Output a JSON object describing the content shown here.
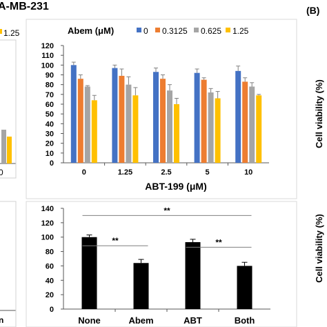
{
  "figure_text": {
    "cell_line_title": "A-MB-231",
    "panel_b_label": "(B)",
    "left_legend_fragment": "1.25",
    "left_tick_fragment": "0",
    "left_xtick_fragment": "n",
    "right_ylabel_top": "Cell viability (%)",
    "right_ylabel_bottom": "Cell viability (%)"
  },
  "chart_data": [
    {
      "type": "bar",
      "legend_title": "Abem (μM)",
      "legend_position": "top",
      "xlabel": "ABT-199 (μM)",
      "ylabel": "",
      "categories": [
        "0",
        "1.25",
        "2.5",
        "5",
        "10"
      ],
      "ylim": [
        0,
        120
      ],
      "yticks": [
        0,
        10,
        20,
        30,
        40,
        50,
        60,
        70,
        80,
        90,
        100,
        110,
        120
      ],
      "ytick_labels": [
        "0",
        "10",
        "20",
        "30",
        "40",
        "50",
        "60",
        "70",
        "80",
        "90",
        "100",
        "110",
        "120"
      ],
      "grid": false,
      "series": [
        {
          "name": "0",
          "color": "#4472C4",
          "values": [
            100,
            97,
            93,
            92,
            94
          ],
          "errors": [
            3,
            3,
            4,
            4,
            5
          ]
        },
        {
          "name": "0.3125",
          "color": "#ED7D31",
          "values": [
            86,
            89,
            86,
            85,
            83
          ],
          "errors": [
            4,
            7,
            4,
            2,
            4
          ]
        },
        {
          "name": "0.625",
          "color": "#A5A5A5",
          "values": [
            78,
            80,
            74,
            72,
            78
          ],
          "errors": [
            1,
            8,
            6,
            4,
            4
          ]
        },
        {
          "name": "1.25",
          "color": "#FFC000",
          "values": [
            64,
            69,
            60,
            66,
            69
          ],
          "errors": [
            5,
            8,
            6,
            7,
            1
          ]
        }
      ]
    },
    {
      "type": "bar",
      "xlabel": "",
      "ylabel": "",
      "categories": [
        "None",
        "Abem",
        "ABT",
        "Both"
      ],
      "ylim": [
        0,
        140
      ],
      "yticks": [
        0,
        20,
        40,
        60,
        80,
        100,
        120,
        140
      ],
      "ytick_labels": [
        "0",
        "20",
        "40",
        "60",
        "80",
        "100",
        "120",
        "140"
      ],
      "grid": false,
      "series": [
        {
          "color": "#000000",
          "values": [
            100,
            64,
            93,
            60
          ],
          "errors": [
            3,
            5,
            4,
            5
          ]
        }
      ],
      "annotations": [
        {
          "text": "**",
          "from": "None",
          "to": "Both",
          "level": 130
        },
        {
          "text": "**",
          "from": "None",
          "to": "Abem",
          "level": 88
        },
        {
          "text": "**",
          "from": "ABT",
          "to": "Both",
          "level": 86
        }
      ]
    }
  ]
}
